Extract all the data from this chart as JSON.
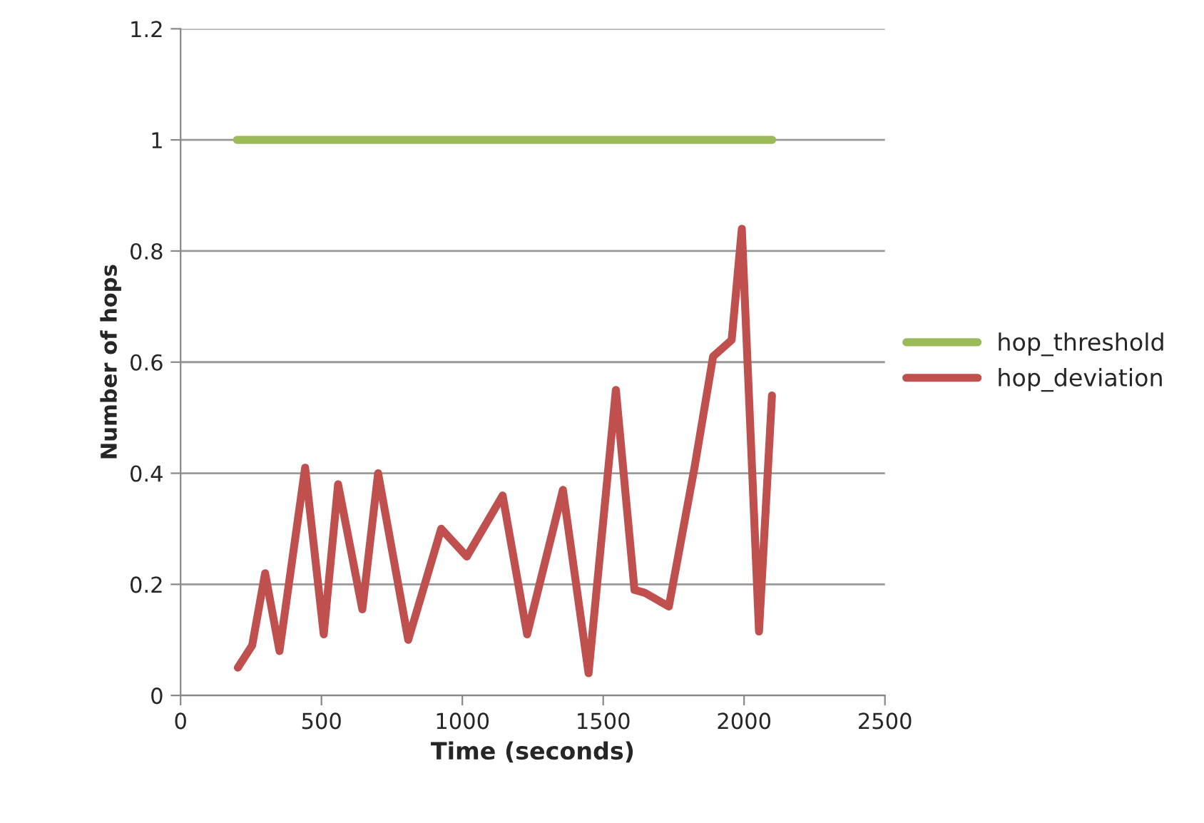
{
  "chart_data": {
    "type": "line",
    "xlabel": "Time (seconds)",
    "ylabel": "Number of hops",
    "xlim": [
      0,
      2500
    ],
    "xticks": [
      0,
      500,
      1000,
      1500,
      2000,
      2500
    ],
    "ylim": [
      0,
      1.2
    ],
    "yticks": [
      0,
      0.2,
      0.4,
      0.6,
      0.8,
      1,
      1.2
    ],
    "grid": "y",
    "legend": "right",
    "marker": "none",
    "line_style": "solid",
    "series": [
      {
        "name": "hop_threshold",
        "color": "#9bbb59",
        "x": [
          200,
          2100
        ],
        "values": [
          1,
          1
        ]
      },
      {
        "name": "hop_deviation",
        "color": "#c0504d",
        "x": [
          203,
          254,
          300,
          351,
          442,
          508,
          559,
          645,
          701,
          808,
          925,
          1016,
          1143,
          1230,
          1357,
          1448,
          1545,
          1611,
          1647,
          1733,
          1824,
          1890,
          1956,
          1992,
          2053,
          2099
        ],
        "values": [
          0.05,
          0.09,
          0.22,
          0.08,
          0.41,
          0.11,
          0.38,
          0.155,
          0.4,
          0.1,
          0.3,
          0.25,
          0.36,
          0.11,
          0.37,
          0.04,
          0.55,
          0.19,
          0.185,
          0.16,
          0.41,
          0.61,
          0.64,
          0.84,
          0.115,
          0.54
        ]
      }
    ]
  }
}
